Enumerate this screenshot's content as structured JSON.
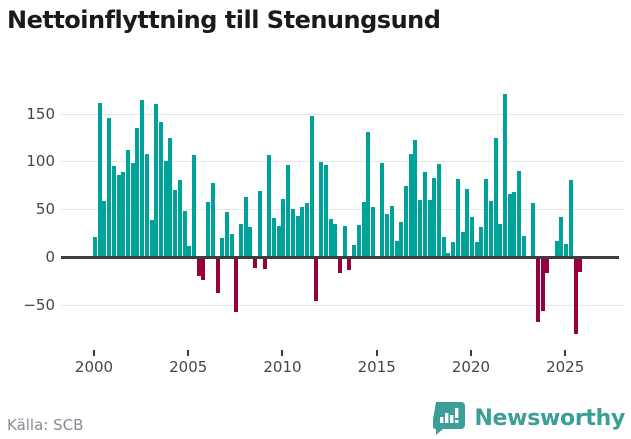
{
  "title": "Nettoinflyttning till Stenungsund",
  "source": "Källa: SCB",
  "branding": {
    "name": "Newsworthy"
  },
  "colors": {
    "positive": "#00a39a",
    "negative": "#97003c",
    "axis": "#3d3d3d",
    "grid": "#e6e6e6",
    "title_text": "#1a1a1a",
    "tick_text": "#464646",
    "source_text": "#878c94",
    "brand": "#3b9e97"
  },
  "chart_data": {
    "type": "bar",
    "title": "Nettoinflyttning till Stenungsund",
    "frequency": "quarterly",
    "start_year": 2000,
    "x_tick_years": [
      2000,
      2005,
      2010,
      2015,
      2020,
      2025
    ],
    "x_tick_labels": [
      "2000",
      "2005",
      "2010",
      "2015",
      "2020",
      "2025"
    ],
    "y_ticks": [
      150,
      100,
      50,
      0,
      -50
    ],
    "y_tick_labels": [
      "150",
      "100",
      "50",
      "0",
      "−50"
    ],
    "ylim": [
      -85,
      177
    ],
    "grid": true,
    "legend": "none",
    "values": [
      21,
      161,
      59,
      145,
      95,
      86,
      89,
      112,
      98,
      135,
      164,
      108,
      39,
      160,
      141,
      100,
      125,
      70,
      81,
      48,
      11,
      107,
      -19,
      -23,
      58,
      77,
      -37,
      20,
      47,
      24,
      -57,
      34,
      63,
      31,
      -10,
      69,
      -11,
      107,
      41,
      32,
      61,
      96,
      50,
      43,
      52,
      56,
      148,
      -45,
      99,
      96,
      40,
      35,
      -16,
      32,
      -13,
      13,
      33,
      58,
      131,
      52,
      0,
      98,
      45,
      53,
      17,
      37,
      74,
      108,
      122,
      60,
      89,
      60,
      83,
      97,
      21,
      4,
      16,
      82,
      26,
      71,
      42,
      16,
      31,
      82,
      59,
      124,
      35,
      170,
      66,
      68,
      90,
      22,
      0,
      57,
      -67,
      -55,
      -16,
      0,
      17,
      42,
      14,
      81,
      -80,
      -15
    ]
  }
}
